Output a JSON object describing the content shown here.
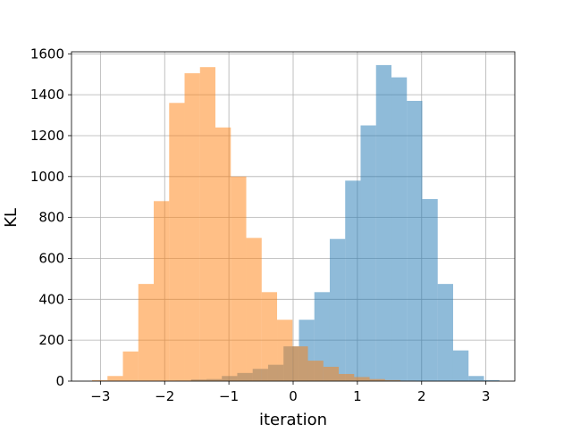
{
  "chart_data": {
    "type": "histogram",
    "title": "",
    "xlabel": "iteration",
    "ylabel": "KL",
    "xlim": [
      -3.45,
      3.45
    ],
    "ylim": [
      0,
      1610
    ],
    "xticks": [
      -3,
      -2,
      -1,
      0,
      1,
      2,
      3
    ],
    "yticks": [
      0,
      200,
      400,
      600,
      800,
      1000,
      1200,
      1400,
      1600
    ],
    "grid": true,
    "series": [
      {
        "color": "#1f77b4",
        "opacity": 0.5,
        "bins": [
          {
            "x0": -1.83,
            "x1": -1.59,
            "count": 2
          },
          {
            "x0": -1.59,
            "x1": -1.35,
            "count": 8
          },
          {
            "x0": -1.35,
            "x1": -1.11,
            "count": 10
          },
          {
            "x0": -1.11,
            "x1": -0.87,
            "count": 25
          },
          {
            "x0": -0.87,
            "x1": -0.63,
            "count": 40
          },
          {
            "x0": -0.63,
            "x1": -0.39,
            "count": 60
          },
          {
            "x0": -0.39,
            "x1": -0.15,
            "count": 80
          },
          {
            "x0": -0.15,
            "x1": 0.09,
            "count": 170
          },
          {
            "x0": 0.09,
            "x1": 0.33,
            "count": 300
          },
          {
            "x0": 0.33,
            "x1": 0.57,
            "count": 435
          },
          {
            "x0": 0.57,
            "x1": 0.81,
            "count": 695
          },
          {
            "x0": 0.81,
            "x1": 1.05,
            "count": 980
          },
          {
            "x0": 1.05,
            "x1": 1.29,
            "count": 1250
          },
          {
            "x0": 1.29,
            "x1": 1.53,
            "count": 1545
          },
          {
            "x0": 1.53,
            "x1": 1.77,
            "count": 1485
          },
          {
            "x0": 1.77,
            "x1": 2.01,
            "count": 1370
          },
          {
            "x0": 2.01,
            "x1": 2.25,
            "count": 890
          },
          {
            "x0": 2.25,
            "x1": 2.49,
            "count": 475
          },
          {
            "x0": 2.49,
            "x1": 2.73,
            "count": 150
          },
          {
            "x0": 2.73,
            "x1": 2.97,
            "count": 25
          },
          {
            "x0": 2.97,
            "x1": 3.21,
            "count": 5
          }
        ]
      },
      {
        "color": "#ff7f0e",
        "opacity": 0.5,
        "bins": [
          {
            "x0": -3.13,
            "x1": -2.89,
            "count": 5
          },
          {
            "x0": -2.89,
            "x1": -2.65,
            "count": 25
          },
          {
            "x0": -2.65,
            "x1": -2.41,
            "count": 145
          },
          {
            "x0": -2.41,
            "x1": -2.17,
            "count": 475
          },
          {
            "x0": -2.17,
            "x1": -1.93,
            "count": 880
          },
          {
            "x0": -1.93,
            "x1": -1.69,
            "count": 1360
          },
          {
            "x0": -1.69,
            "x1": -1.45,
            "count": 1505
          },
          {
            "x0": -1.45,
            "x1": -1.21,
            "count": 1535
          },
          {
            "x0": -1.21,
            "x1": -0.97,
            "count": 1240
          },
          {
            "x0": -0.97,
            "x1": -0.73,
            "count": 1000
          },
          {
            "x0": -0.73,
            "x1": -0.49,
            "count": 700
          },
          {
            "x0": -0.49,
            "x1": -0.25,
            "count": 435
          },
          {
            "x0": -0.25,
            "x1": -0.01,
            "count": 300
          },
          {
            "x0": -0.01,
            "x1": 0.23,
            "count": 170
          },
          {
            "x0": 0.23,
            "x1": 0.47,
            "count": 100
          },
          {
            "x0": 0.47,
            "x1": 0.71,
            "count": 70
          },
          {
            "x0": 0.71,
            "x1": 0.95,
            "count": 35
          },
          {
            "x0": 0.95,
            "x1": 1.19,
            "count": 20
          },
          {
            "x0": 1.19,
            "x1": 1.43,
            "count": 10
          },
          {
            "x0": 1.43,
            "x1": 1.67,
            "count": 5
          },
          {
            "x0": 1.67,
            "x1": 1.91,
            "count": 2
          }
        ]
      }
    ]
  }
}
